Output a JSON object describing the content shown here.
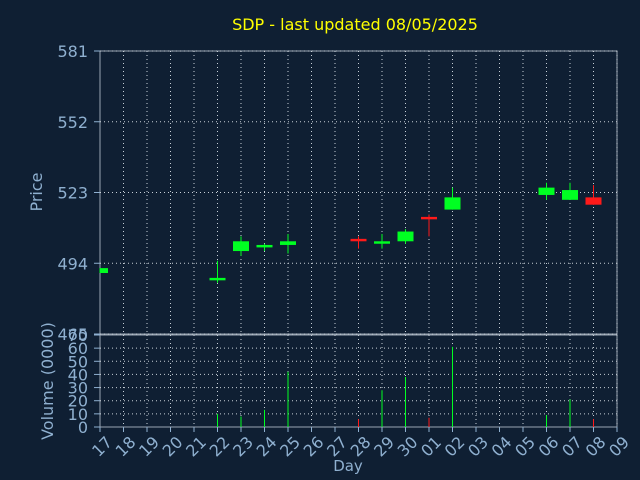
{
  "title": "SDP - last updated 08/05/2025",
  "colors": {
    "background": "#0f1f33",
    "title": "#ffff00",
    "axis_text": "#8fb0d0",
    "grid": "#c8d0d8",
    "up": "#00ff22",
    "down": "#ff1a1a"
  },
  "chart_data": [
    {
      "type": "candlestick",
      "ylabel": "Price",
      "ylim": [
        465,
        581
      ],
      "yticks": [
        465,
        494,
        523,
        552,
        581
      ],
      "grid": true,
      "categories": [
        "17",
        "18",
        "19",
        "20",
        "21",
        "22",
        "23",
        "24",
        "25",
        "26",
        "27",
        "28",
        "29",
        "30",
        "01",
        "02",
        "03",
        "04",
        "05",
        "06",
        "07",
        "08",
        "09"
      ],
      "candles": [
        {
          "day": "17",
          "open": 490,
          "high": 492,
          "low": 490,
          "close": 492,
          "dir": "up"
        },
        {
          "day": "22",
          "open": 487,
          "high": 495,
          "low": 486,
          "close": 488,
          "dir": "up"
        },
        {
          "day": "23",
          "open": 499,
          "high": 505,
          "low": 497,
          "close": 503,
          "dir": "up"
        },
        {
          "day": "24",
          "open": 500.5,
          "high": 502,
          "low": 499,
          "close": 501.5,
          "dir": "up"
        },
        {
          "day": "25",
          "open": 501.5,
          "high": 506,
          "low": 498,
          "close": 503,
          "dir": "up"
        },
        {
          "day": "28",
          "open": 504,
          "high": 505,
          "low": 500,
          "close": 503,
          "dir": "down"
        },
        {
          "day": "29",
          "open": 502,
          "high": 506,
          "low": 500,
          "close": 503,
          "dir": "up"
        },
        {
          "day": "30",
          "open": 503,
          "high": 508,
          "low": 502,
          "close": 507,
          "dir": "up"
        },
        {
          "day": "01",
          "open": 513,
          "high": 514,
          "low": 505,
          "close": 512,
          "dir": "down"
        },
        {
          "day": "02",
          "open": 516,
          "high": 525,
          "low": 516,
          "close": 521,
          "dir": "up"
        },
        {
          "day": "06",
          "open": 522,
          "high": 527,
          "low": 520,
          "close": 525,
          "dir": "up"
        },
        {
          "day": "07",
          "open": 520,
          "high": 527,
          "low": 520,
          "close": 524,
          "dir": "up"
        },
        {
          "day": "08",
          "open": 521,
          "high": 526,
          "low": 518,
          "close": 518,
          "dir": "down"
        }
      ]
    },
    {
      "type": "bar",
      "ylabel": "Volume (0000)",
      "xlabel": "Day",
      "ylim": [
        0,
        70
      ],
      "yticks": [
        0,
        10,
        20,
        30,
        40,
        50,
        60,
        70
      ],
      "grid": true,
      "categories": [
        "17",
        "18",
        "19",
        "20",
        "21",
        "22",
        "23",
        "24",
        "25",
        "26",
        "27",
        "28",
        "29",
        "30",
        "01",
        "02",
        "03",
        "04",
        "05",
        "06",
        "07",
        "08",
        "09"
      ],
      "bars": [
        {
          "day": "17",
          "value": 0,
          "dir": "up"
        },
        {
          "day": "22",
          "value": 10,
          "dir": "up"
        },
        {
          "day": "23",
          "value": 8,
          "dir": "up"
        },
        {
          "day": "24",
          "value": 13,
          "dir": "up"
        },
        {
          "day": "25",
          "value": 42,
          "dir": "up"
        },
        {
          "day": "28",
          "value": 6,
          "dir": "down"
        },
        {
          "day": "29",
          "value": 28,
          "dir": "up"
        },
        {
          "day": "30",
          "value": 38,
          "dir": "up"
        },
        {
          "day": "01",
          "value": 7,
          "dir": "down"
        },
        {
          "day": "02",
          "value": 61,
          "dir": "up"
        },
        {
          "day": "06",
          "value": 9,
          "dir": "up"
        },
        {
          "day": "07",
          "value": 21,
          "dir": "up"
        },
        {
          "day": "08",
          "value": 6,
          "dir": "down"
        }
      ]
    }
  ]
}
